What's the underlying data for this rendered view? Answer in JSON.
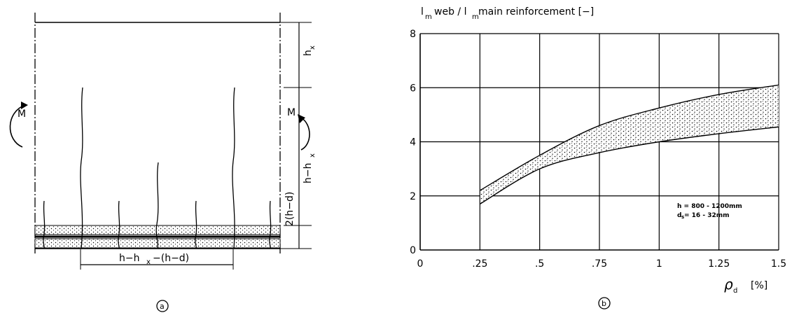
{
  "panel_a": {
    "moment_left": "M",
    "moment_right": "M",
    "dim_hx": "h",
    "dim_hx_sub": "x",
    "dim_h_minus_hx": "h−h",
    "dim_h_minus_hx_sub": "x",
    "dim_2hd": "2(h−d)",
    "dim_bottom": "h−h",
    "dim_bottom_sub": "x",
    "dim_bottom_rest": "−(h−d)",
    "caption": "a"
  },
  "panel_b": {
    "caption": "b",
    "note_line1": "h = 800 - 1200mm",
    "note_line2_prefix": "d",
    "note_line2_sub": "s",
    "note_line2_rest": " =   16 - 32mm"
  },
  "chart_data": {
    "type": "area",
    "title": "",
    "ylabel_parts": [
      "l",
      "m",
      "web / l",
      "m",
      " main reinforcement  [−]"
    ],
    "xlabel_symbol": "ρ",
    "xlabel_sub": "d",
    "xlabel_unit": "[%]",
    "xlim": [
      0,
      1.5
    ],
    "ylim": [
      0,
      8
    ],
    "grid": true,
    "xticks": [
      0,
      0.25,
      0.5,
      0.75,
      1,
      1.25,
      1.5
    ],
    "xtick_labels": [
      "0",
      ".25",
      ".5",
      ".75",
      "1",
      "1.25",
      "1.5"
    ],
    "yticks": [
      0,
      2,
      4,
      6,
      8
    ],
    "ytick_labels": [
      "0",
      "2",
      "4",
      "6",
      "8"
    ],
    "series": [
      {
        "x": [
          0.25,
          0.5,
          0.75,
          1.0,
          1.25,
          1.5
        ],
        "values": [
          2.2,
          3.5,
          4.6,
          5.25,
          5.75,
          6.1
        ]
      },
      {
        "x": [
          0.25,
          0.5,
          0.75,
          1.0,
          1.25,
          1.5
        ],
        "values": [
          1.7,
          3.0,
          3.6,
          4.0,
          4.3,
          4.55
        ]
      }
    ]
  }
}
